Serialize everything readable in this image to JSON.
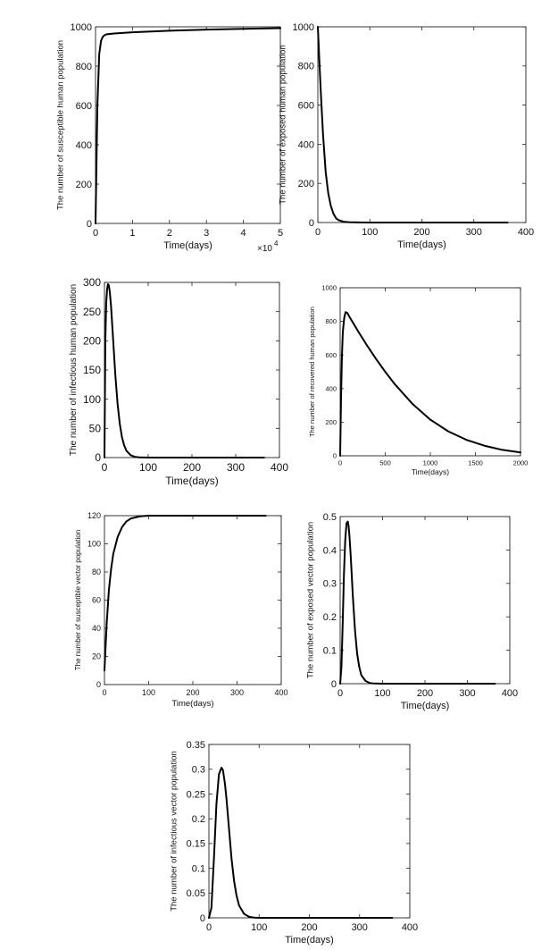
{
  "chart_data": [
    {
      "type": "line",
      "title": "",
      "xlabel": "Time(days)",
      "ylabel": "The number of susceptible human population",
      "xlim": [
        0,
        50000
      ],
      "ylim": [
        0,
        1000
      ],
      "xticks": [
        0,
        10000,
        20000,
        30000,
        40000,
        50000
      ],
      "xticklabels": [
        "0",
        "1",
        "2",
        "3",
        "4",
        "5"
      ],
      "yticks": [
        0,
        200,
        400,
        600,
        800,
        1000
      ],
      "yticklabels": [
        "0",
        "200",
        "400",
        "600",
        "800",
        "1000"
      ],
      "x_exponent_label": "×10",
      "x_exponent_power": "4",
      "grid": false,
      "series": [
        {
          "x": [
            0,
            500,
            1000,
            1500,
            2000,
            2500,
            3000,
            5000,
            10000,
            20000,
            30000,
            40000,
            50000
          ],
          "y": [
            0,
            600,
            860,
            930,
            950,
            958,
            962,
            966,
            972,
            980,
            986,
            990,
            993
          ]
        }
      ]
    },
    {
      "type": "line",
      "title": "",
      "xlabel": "Time(days)",
      "ylabel": "The number of exposed human population",
      "xlim": [
        0,
        400
      ],
      "ylim": [
        0,
        1000
      ],
      "xticks": [
        0,
        100,
        200,
        300,
        400
      ],
      "xticklabels": [
        "0",
        "100",
        "200",
        "300",
        "400"
      ],
      "yticks": [
        0,
        200,
        400,
        600,
        800,
        1000
      ],
      "yticklabels": [
        "0",
        "200",
        "400",
        "600",
        "800",
        "1000"
      ],
      "grid": false,
      "series": [
        {
          "x": [
            0,
            3,
            6,
            10,
            15,
            20,
            25,
            30,
            35,
            40,
            50,
            60,
            80,
            100,
            200,
            365
          ],
          "y": [
            1000,
            820,
            650,
            450,
            260,
            150,
            85,
            45,
            22,
            12,
            4,
            1.5,
            0.3,
            0,
            0,
            0
          ]
        }
      ]
    },
    {
      "type": "line",
      "title": "",
      "xlabel": "Time(days)",
      "ylabel": "The number of infectious human population",
      "xlim": [
        0,
        400
      ],
      "ylim": [
        0,
        300
      ],
      "xticks": [
        0,
        100,
        200,
        300,
        400
      ],
      "xticklabels": [
        "0",
        "100",
        "200",
        "300",
        "400"
      ],
      "yticks": [
        0,
        50,
        100,
        150,
        200,
        250,
        300
      ],
      "yticklabels": [
        "0",
        "50",
        "100",
        "150",
        "200",
        "250",
        "300"
      ],
      "grid": false,
      "series": [
        {
          "x": [
            0,
            2,
            4,
            6,
            8,
            10,
            12,
            15,
            20,
            25,
            30,
            35,
            40,
            45,
            50,
            60,
            70,
            80,
            100,
            200,
            365
          ],
          "y": [
            0,
            200,
            265,
            288,
            297,
            295,
            285,
            260,
            200,
            140,
            92,
            58,
            35,
            21,
            12,
            4,
            1.2,
            0.3,
            0,
            0,
            0
          ]
        }
      ]
    },
    {
      "type": "line",
      "title": "",
      "xlabel": "Time(days)",
      "ylabel": "The number of recovered human population",
      "xlim": [
        0,
        2000
      ],
      "ylim": [
        0,
        1000
      ],
      "xticks": [
        0,
        500,
        1000,
        1500,
        2000
      ],
      "xticklabels": [
        "0",
        "500",
        "1000",
        "1500",
        "2000"
      ],
      "yticks": [
        0,
        200,
        400,
        600,
        800,
        1000
      ],
      "yticklabels": [
        "0",
        "200",
        "400",
        "600",
        "800",
        "1000"
      ],
      "grid": false,
      "series": [
        {
          "x": [
            0,
            10,
            20,
            30,
            45,
            60,
            80,
            100,
            150,
            200,
            300,
            400,
            500,
            600,
            800,
            1000,
            1200,
            1400,
            1600,
            1800,
            2000
          ],
          "y": [
            0,
            350,
            600,
            740,
            820,
            855,
            850,
            830,
            785,
            740,
            655,
            575,
            500,
            430,
            310,
            215,
            145,
            95,
            60,
            35,
            20
          ]
        }
      ]
    },
    {
      "type": "line",
      "title": "",
      "xlabel": "Time(days)",
      "ylabel": "The number of susceptible vector population",
      "xlim": [
        0,
        400
      ],
      "ylim": [
        0,
        120
      ],
      "xticks": [
        0,
        100,
        200,
        300,
        400
      ],
      "xticklabels": [
        "0",
        "100",
        "200",
        "300",
        "400"
      ],
      "yticks": [
        0,
        20,
        40,
        60,
        80,
        100,
        120
      ],
      "yticklabels": [
        "0",
        "20",
        "40",
        "60",
        "80",
        "100",
        "120"
      ],
      "grid": false,
      "series": [
        {
          "x": [
            0,
            5,
            10,
            15,
            20,
            30,
            40,
            50,
            60,
            80,
            100,
            150,
            200,
            300,
            365
          ],
          "y": [
            10,
            43,
            67,
            82,
            93,
            105,
            112,
            116,
            118,
            119.5,
            120,
            120,
            120,
            120,
            120
          ]
        }
      ]
    },
    {
      "type": "line",
      "title": "",
      "xlabel": "Time(days)",
      "ylabel": "The number of exposed vector population",
      "xlim": [
        0,
        400
      ],
      "ylim": [
        0,
        0.5
      ],
      "xticks": [
        0,
        100,
        200,
        300,
        400
      ],
      "xticklabels": [
        "0",
        "100",
        "200",
        "300",
        "400"
      ],
      "yticks": [
        0,
        0.1,
        0.2,
        0.3,
        0.4,
        0.5
      ],
      "yticklabels": [
        "0",
        "0.1",
        "0.2",
        "0.3",
        "0.4",
        "0.5"
      ],
      "grid": false,
      "series": [
        {
          "x": [
            0,
            3,
            6,
            9,
            12,
            15,
            18,
            20,
            22,
            25,
            30,
            35,
            40,
            45,
            50,
            60,
            70,
            80,
            100,
            200,
            365
          ],
          "y": [
            0,
            0.05,
            0.18,
            0.33,
            0.43,
            0.48,
            0.485,
            0.47,
            0.44,
            0.38,
            0.26,
            0.16,
            0.09,
            0.05,
            0.025,
            0.008,
            0.002,
            0.0005,
            0,
            0,
            0
          ]
        }
      ]
    },
    {
      "type": "line",
      "title": "",
      "xlabel": "Time(days)",
      "ylabel": "The number of infectious vector population",
      "xlim": [
        0,
        400
      ],
      "ylim": [
        0,
        0.35
      ],
      "xticks": [
        0,
        100,
        200,
        300,
        400
      ],
      "xticklabels": [
        "0",
        "100",
        "200",
        "300",
        "400"
      ],
      "yticks": [
        0,
        0.05,
        0.1,
        0.15,
        0.2,
        0.25,
        0.3,
        0.35
      ],
      "yticklabels": [
        "0",
        "0.05",
        "0.1",
        "0.15",
        "0.2",
        "0.25",
        "0.3",
        "0.35"
      ],
      "grid": false,
      "series": [
        {
          "x": [
            0,
            5,
            10,
            15,
            20,
            25,
            28,
            32,
            35,
            40,
            45,
            50,
            55,
            60,
            70,
            80,
            90,
            100,
            200,
            365
          ],
          "y": [
            0,
            0.02,
            0.12,
            0.23,
            0.29,
            0.303,
            0.298,
            0.27,
            0.24,
            0.18,
            0.12,
            0.075,
            0.045,
            0.025,
            0.008,
            0.002,
            0.0005,
            0,
            0,
            0
          ]
        }
      ]
    }
  ]
}
